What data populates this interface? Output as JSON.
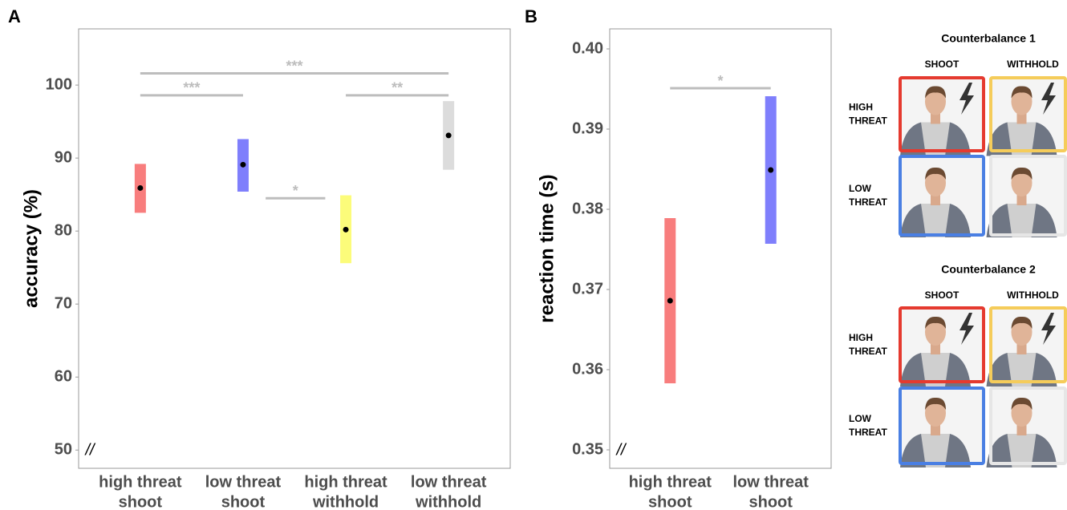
{
  "chart_data": [
    {
      "type": "pointrange",
      "panel": "A",
      "ylabel": "accuracy (%)",
      "categories": [
        [
          "high threat",
          "shoot"
        ],
        [
          "low threat",
          "shoot"
        ],
        [
          "high threat",
          "withhold"
        ],
        [
          "low threat",
          "withhold"
        ]
      ],
      "values": [
        85.9,
        89.1,
        80.2,
        93.1
      ],
      "lower": [
        82.5,
        85.4,
        75.6,
        88.4
      ],
      "upper": [
        89.2,
        92.6,
        84.9,
        97.8
      ],
      "colors": [
        "#f87d7d",
        "#7f7ffc",
        "#fcfc7a",
        "#dcdcdc"
      ],
      "ylim": [
        47.5,
        107.7
      ],
      "yticks": [
        50,
        60,
        70,
        80,
        90,
        100
      ],
      "axis_break": "//",
      "annotations": [
        {
          "label": "***",
          "from": 0,
          "to": 3,
          "y": 101.6
        },
        {
          "label": "***",
          "from": 0,
          "to": 1,
          "y": 98.6
        },
        {
          "label": "*",
          "from": 1,
          "to": 2,
          "y": 84.5
        },
        {
          "label": "**",
          "from": 2,
          "to": 3,
          "y": 98.6
        }
      ]
    },
    {
      "type": "pointrange",
      "panel": "B",
      "ylabel": "reaction time (s)",
      "categories": [
        [
          "high threat",
          "shoot"
        ],
        [
          "low threat",
          "shoot"
        ]
      ],
      "values": [
        0.3686,
        0.3849
      ],
      "lower": [
        0.3583,
        0.3757
      ],
      "upper": [
        0.3789,
        0.3941
      ],
      "colors": [
        "#f87d7d",
        "#7f7ffc"
      ],
      "ylim": [
        0.3477,
        0.4025
      ],
      "yticks": [
        0.35,
        0.36,
        0.37,
        0.38,
        0.39,
        {
          "value": 0.4,
          "label": "0.40"
        }
      ],
      "axis_break": "//",
      "annotations": [
        {
          "label": "*",
          "from": 0,
          "to": 1,
          "y": 0.3951
        }
      ]
    }
  ],
  "counterbalance": [
    {
      "title": "Counterbalance 1",
      "columns": [
        "SHOOT",
        "WITHHOLD"
      ],
      "rows": [
        [
          "HIGH",
          "THREAT"
        ],
        [
          "LOW",
          "THREAT"
        ]
      ]
    },
    {
      "title": "Counterbalance 2",
      "columns": [
        "SHOOT",
        "WITHHOLD"
      ],
      "rows": [
        [
          "HIGH",
          "THREAT"
        ],
        [
          "LOW",
          "THREAT"
        ]
      ]
    }
  ]
}
